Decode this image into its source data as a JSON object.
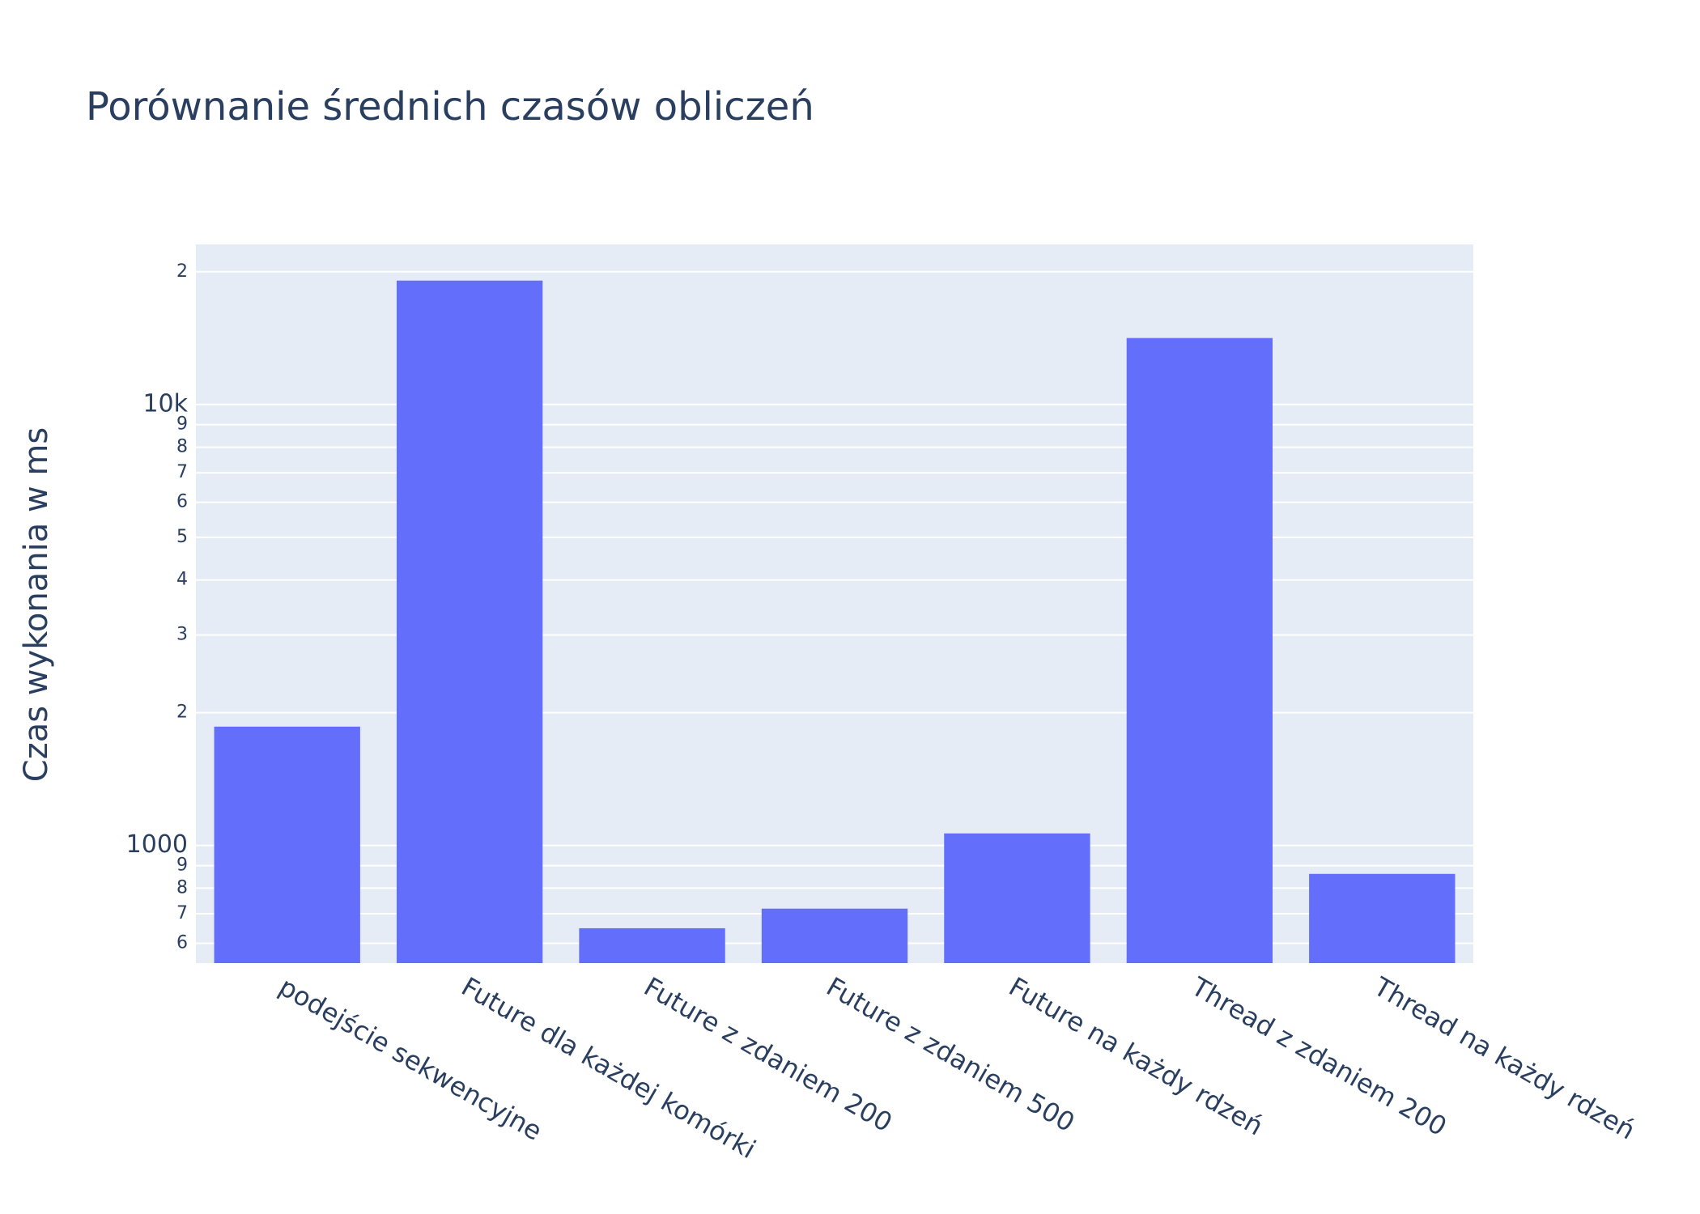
{
  "chart_data": {
    "type": "bar",
    "title": "Porównanie średnich czasów obliczeń",
    "y_label": "Czas wykonania w ms",
    "categories": [
      "podejście sekwencyjne",
      "Future dla każdej komórki",
      "Future z zdaniem 200",
      "Future z zdaniem 500",
      "Future na każdy rdzeń",
      "Thread z zdaniem 200",
      "Thread na każdy rdzeń"
    ],
    "values": [
      1860,
      19100,
      649,
      719,
      1065,
      14150,
      862
    ],
    "color": "#636efa",
    "log_y": true,
    "ylim": [
      541,
      23070
    ],
    "yticks": [
      {
        "value": 600,
        "label": "6"
      },
      {
        "value": 700,
        "label": "7"
      },
      {
        "value": 800,
        "label": "8"
      },
      {
        "value": 900,
        "label": "9"
      },
      1000,
      {
        "value": 2000,
        "label": "2"
      },
      {
        "value": 3000,
        "label": "3"
      },
      {
        "value": 4000,
        "label": "4"
      },
      {
        "value": 5000,
        "label": "5"
      },
      {
        "value": 6000,
        "label": "6"
      },
      {
        "value": 7000,
        "label": "7"
      },
      {
        "value": 8000,
        "label": "8"
      },
      {
        "value": 9000,
        "label": "9"
      },
      {
        "value": 10000,
        "label": "10k"
      },
      {
        "value": 20000,
        "label": "2"
      }
    ],
    "grid": true
  }
}
